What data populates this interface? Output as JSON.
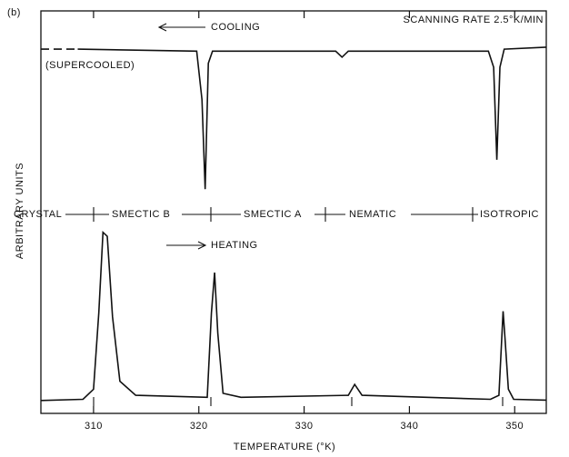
{
  "chart_data": {
    "type": "line",
    "panel_label": "(b)",
    "subtitle": "SCANNING RATE 2.5°K/MIN",
    "xlabel": "TEMPERATURE (°K)",
    "ylabel": "ARBITRARY UNITS",
    "annotations": [
      "COOLING",
      "(SUPERCOOLED)",
      "HEATING"
    ],
    "phases": [
      "CRYSTAL",
      "SMECTIC B",
      "SMECTIC A",
      "NEMATIC",
      "ISOTROPIC"
    ],
    "xlim": [
      305,
      353
    ],
    "xticks": [
      310,
      320,
      330,
      340,
      350
    ],
    "ylim": [
      0,
      10
    ],
    "series": [
      {
        "color": "#111111",
        "dashed": true,
        "x": [
          305,
          308.5
        ],
        "values": [
          9.05,
          9.05
        ]
      },
      {
        "color": "#111111",
        "dashed": false,
        "x": [
          308.5,
          319.8,
          320.3,
          320.6,
          320.9,
          321.3,
          333.0,
          333.6,
          334.2,
          347.5,
          348.0,
          348.3,
          348.6,
          349.0,
          353
        ],
        "values": [
          9.05,
          9.0,
          7.8,
          5.57,
          8.7,
          9.0,
          9.0,
          8.85,
          9.0,
          9.0,
          8.6,
          6.3,
          8.6,
          9.05,
          9.1
        ]
      },
      {
        "color": "#111111",
        "dashed": false,
        "x": [
          305,
          309,
          310,
          310.5,
          310.9,
          311.3,
          311.8,
          312.5,
          314,
          320.8,
          321.2,
          321.5,
          321.8,
          322.3,
          324,
          334.2,
          334.8,
          335.5,
          347.7,
          348.5,
          348.9,
          349.1,
          349.4,
          349.9,
          353
        ],
        "values": [
          0.32,
          0.35,
          0.6,
          2.5,
          4.5,
          4.4,
          2.4,
          0.8,
          0.45,
          0.4,
          2.5,
          3.5,
          2.0,
          0.5,
          0.4,
          0.45,
          0.72,
          0.45,
          0.35,
          0.45,
          2.54,
          1.8,
          0.6,
          0.35,
          0.33
        ]
      }
    ]
  }
}
